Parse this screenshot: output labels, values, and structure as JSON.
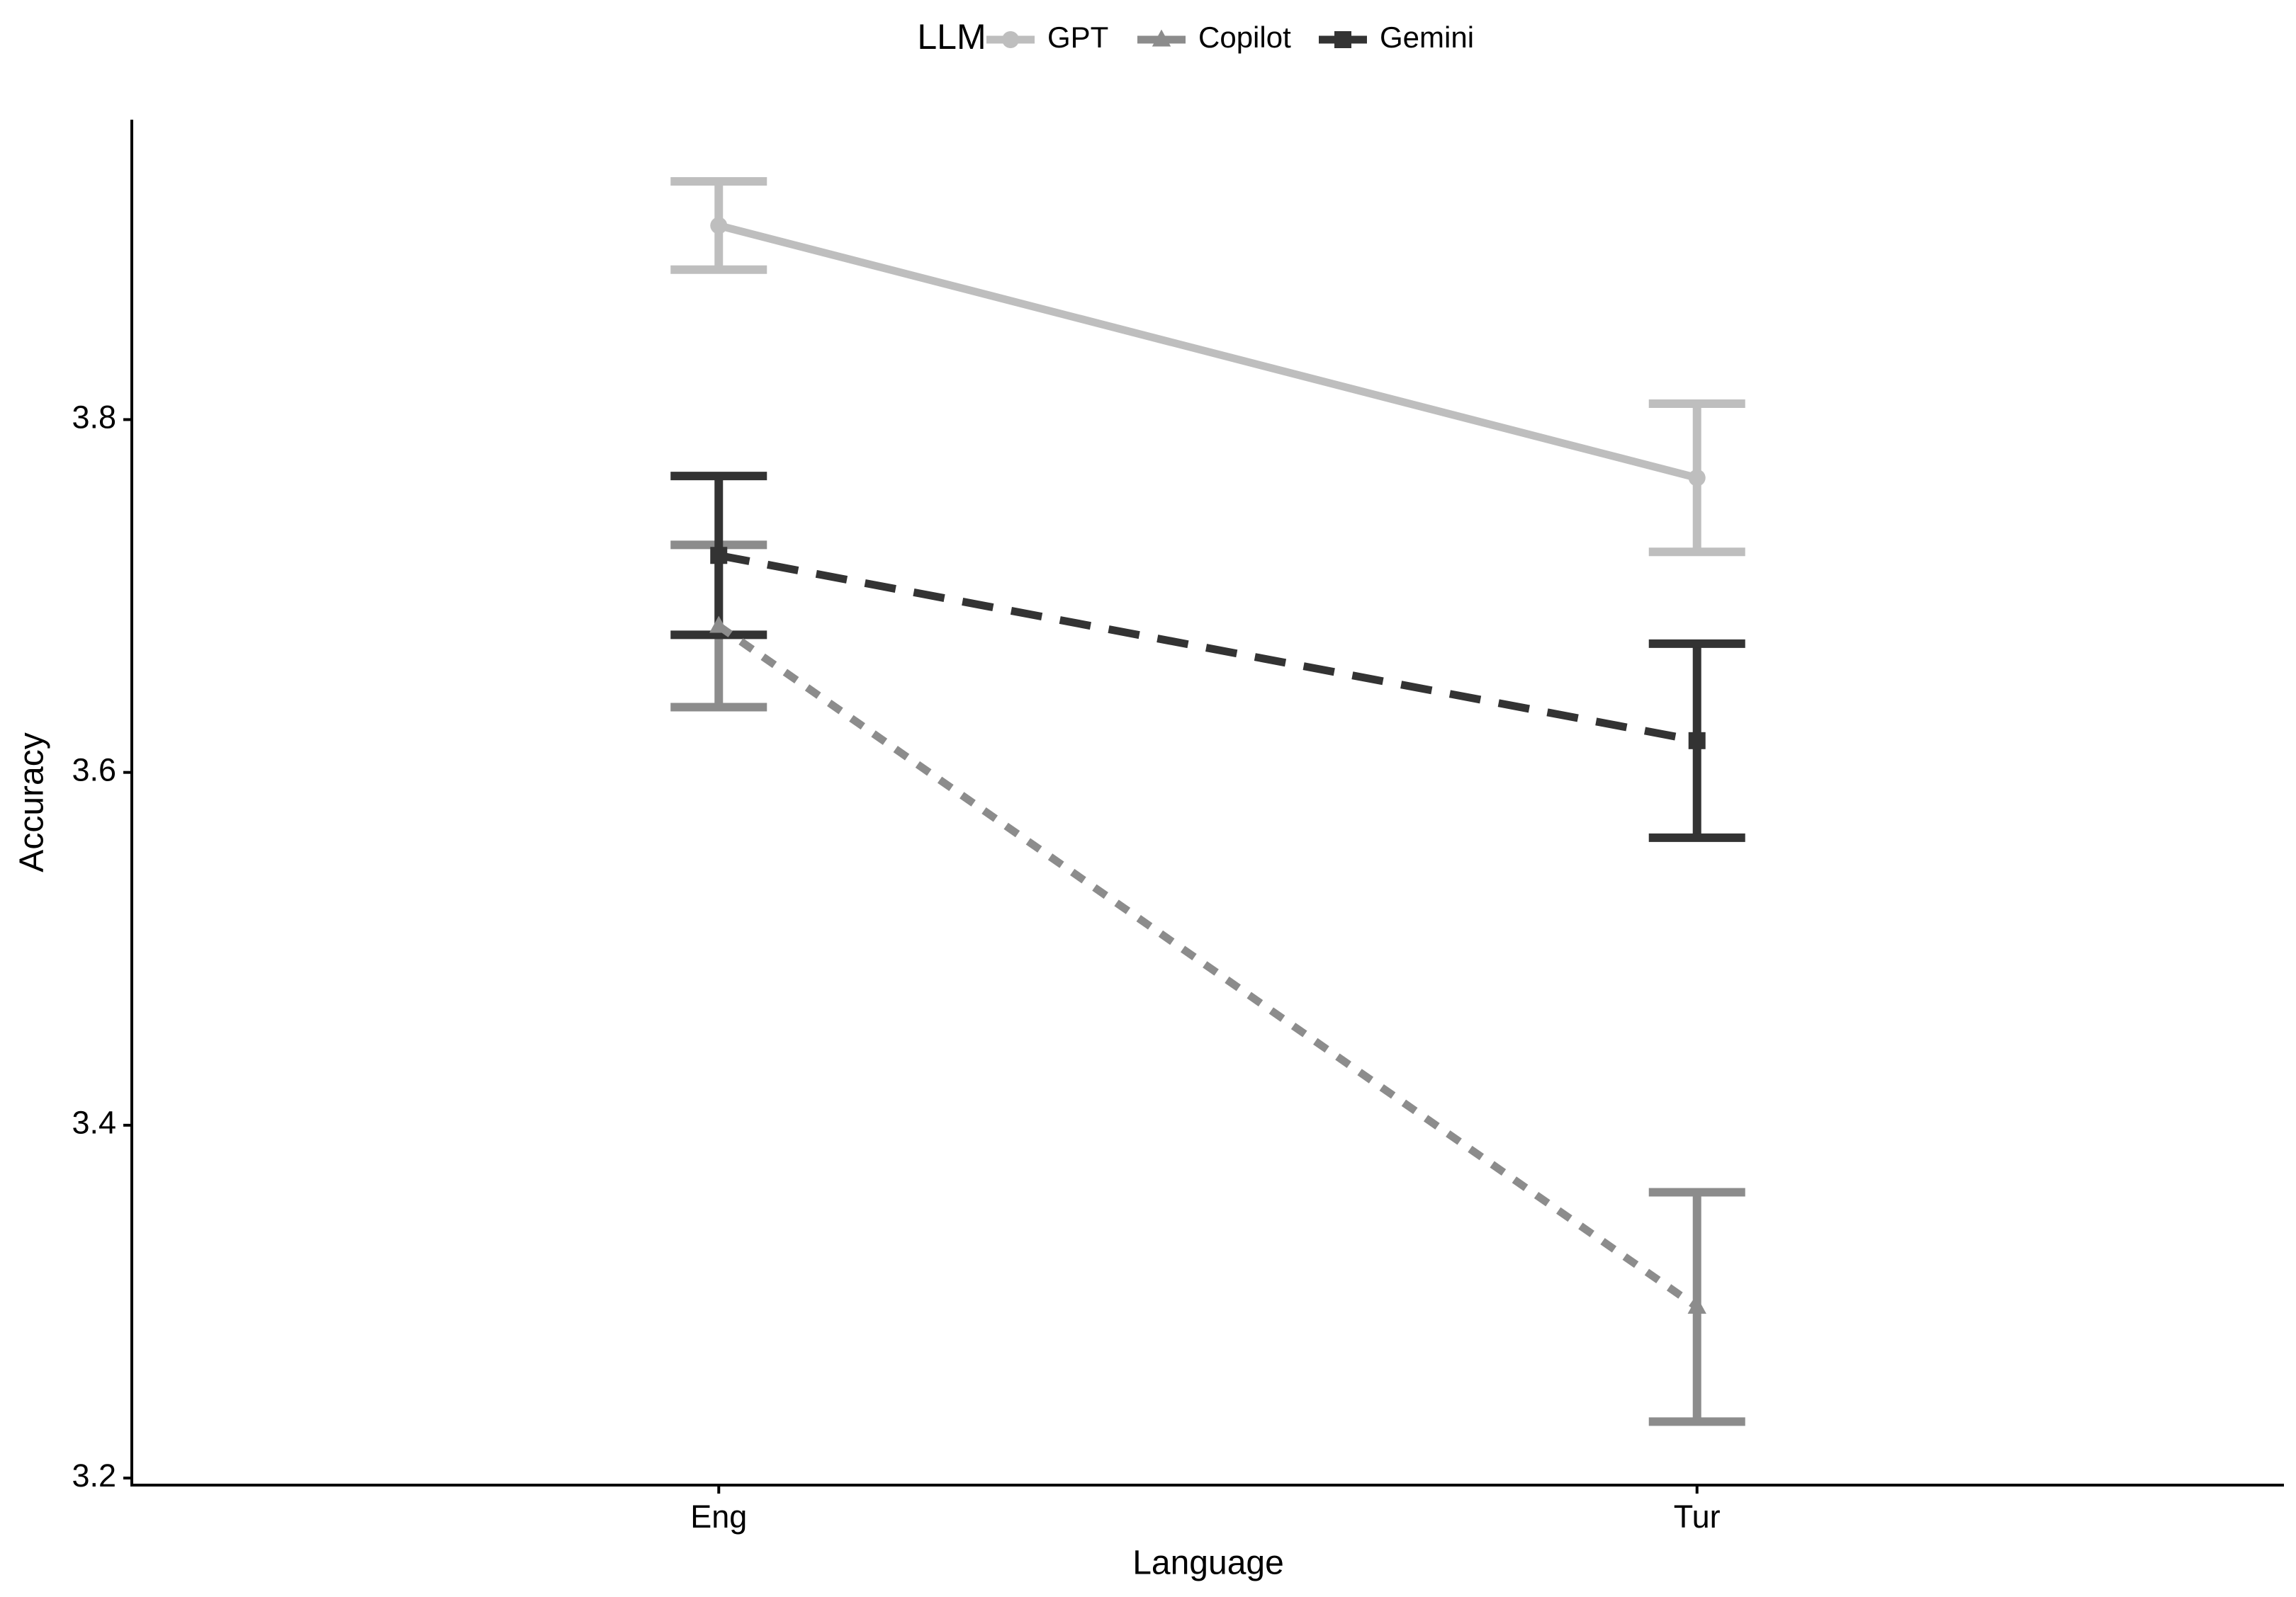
{
  "chart_data": {
    "type": "line",
    "x_label": "Language",
    "y_label": "Accuracy",
    "categories": [
      "Eng",
      "Tur"
    ],
    "legend_title": "LLM",
    "legend_position": "top",
    "series": [
      {
        "name": "GPT",
        "color": "#bebebe",
        "linetype": "solid",
        "marker": "circle",
        "values": [
          3.91,
          3.767
        ],
        "errors": [
          0.025,
          0.042
        ]
      },
      {
        "name": "Copilot",
        "color": "#8c8c8c",
        "linetype": "dotted",
        "marker": "triangle",
        "values": [
          3.683,
          3.297
        ],
        "errors": [
          0.046,
          0.065
        ]
      },
      {
        "name": "Gemini",
        "color": "#333333",
        "linetype": "dashed",
        "marker": "square",
        "values": [
          3.723,
          3.618
        ],
        "errors": [
          0.045,
          0.055
        ]
      }
    ],
    "ylim": [
      3.196,
      3.97
    ],
    "yticks": [
      3.2,
      3.4,
      3.6,
      3.8
    ],
    "grid": false
  }
}
